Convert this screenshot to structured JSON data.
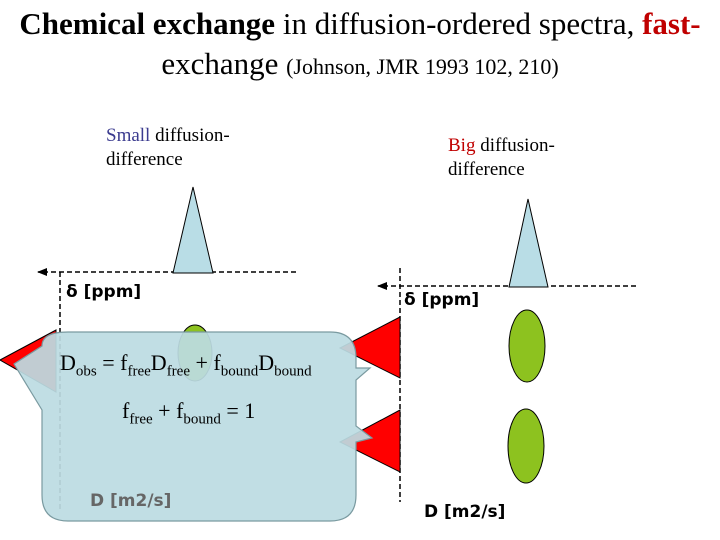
{
  "title": {
    "part1_bold": "Chemical exchange",
    "part2": " in diffusion-ordered spectra, ",
    "part3_red": "fast-",
    "line2_word": "exchange",
    "line2_ref": "(Johnson, JMR 1993 102, 210)"
  },
  "left_panel": {
    "heading_word": "Small",
    "heading_rest": " diffusion-",
    "heading_line2": "difference",
    "delta_label": "δ [ppm]",
    "diffusion_label": "D [m2/s]"
  },
  "right_panel": {
    "heading_word": "Big",
    "heading_rest": " diffusion-",
    "heading_line2": "difference",
    "delta_label": "δ [ppm]",
    "diffusion_label": "D [m2/s]"
  },
  "callout": {
    "eq1": {
      "D": "D",
      "obs": "obs",
      "eq": " = ",
      "f1": "f",
      "free1": "free",
      "D2": "D",
      "free2": "free",
      "plus": " + ",
      "f2": "f",
      "bound1": "bound",
      "D3": "D",
      "bound2": "bound"
    },
    "eq2": {
      "f1": "f",
      "free": "free",
      "plus": " + ",
      "f2": "f",
      "bound": "bound",
      "eq": " = 1"
    }
  },
  "colors": {
    "peak_fill": "#b9dde6",
    "ellipse_fill": "#8dc21f",
    "triangle_fill": "#ff0000",
    "callout_fill": "#bcdce2",
    "title_red": "#c00000",
    "heading_blue": "#3b3b8f"
  }
}
